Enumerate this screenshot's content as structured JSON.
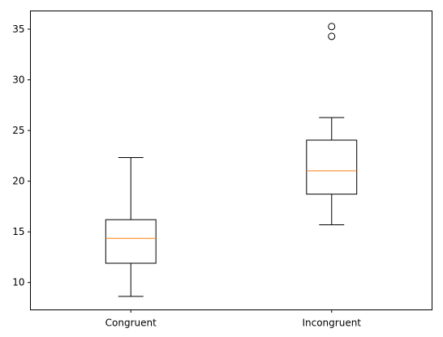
{
  "chart_data": {
    "type": "box",
    "title": "",
    "xlabel": "",
    "ylabel": "",
    "categories": [
      "Congruent",
      "Incongruent"
    ],
    "ylim": [
      7.3,
      36.8
    ],
    "yticks": [
      10,
      15,
      20,
      25,
      30,
      35
    ],
    "boxes": [
      {
        "name": "Congruent",
        "whisker_low": 8.63,
        "q1": 11.9,
        "median": 14.36,
        "q3": 16.2,
        "whisker_high": 22.33,
        "outliers": []
      },
      {
        "name": "Incongruent",
        "whisker_low": 15.69,
        "q1": 18.72,
        "median": 21.02,
        "q3": 24.05,
        "whisker_high": 26.28,
        "outliers": [
          34.29,
          35.26
        ]
      }
    ],
    "colors": {
      "box": "#000000",
      "median": "#ff7f0e",
      "background": "#ffffff"
    }
  }
}
